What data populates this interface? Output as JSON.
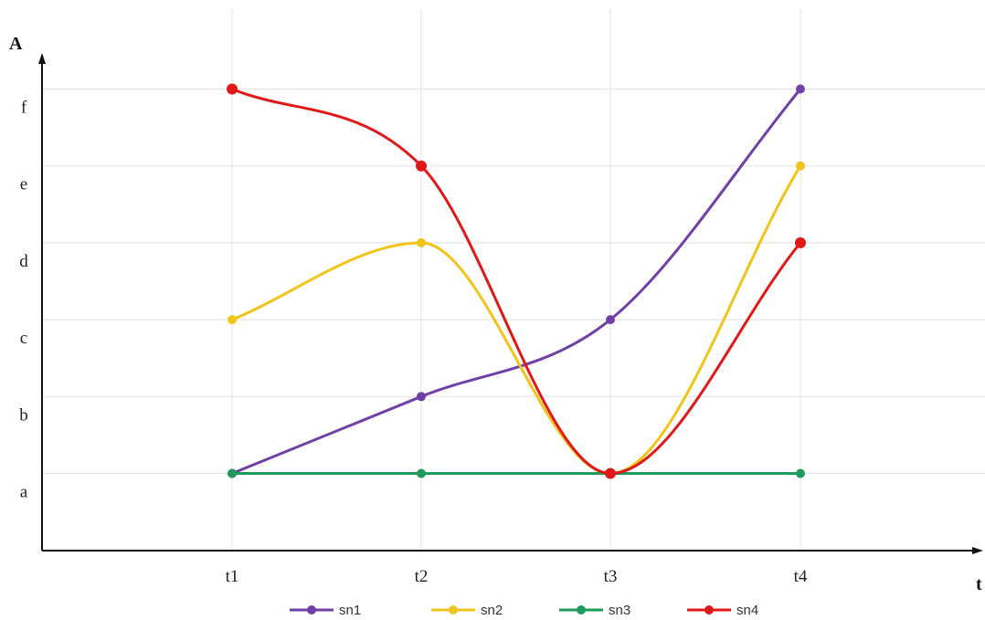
{
  "chart_data": {
    "type": "line",
    "smooth": true,
    "xlabel": "t",
    "ylabel": "A",
    "categories": [
      "t1",
      "t2",
      "t3",
      "t4"
    ],
    "y_levels": [
      "a",
      "b",
      "c",
      "d",
      "e",
      "f"
    ],
    "ylim": [
      -1,
      6
    ],
    "grid": true,
    "legend_position": "bottom",
    "series": [
      {
        "name": "sn1",
        "color": "#7040a8",
        "values": [
          "a",
          "b",
          "c",
          "f"
        ]
      },
      {
        "name": "sn2",
        "color": "#f2c318",
        "values": [
          "c",
          "d",
          "a",
          "e"
        ]
      },
      {
        "name": "sn3",
        "color": "#1e9a5a",
        "values": [
          "a",
          "a",
          "a",
          "a"
        ]
      },
      {
        "name": "sn4",
        "color": "#e01818",
        "values": [
          "f",
          "e",
          "a",
          "d"
        ]
      }
    ]
  }
}
